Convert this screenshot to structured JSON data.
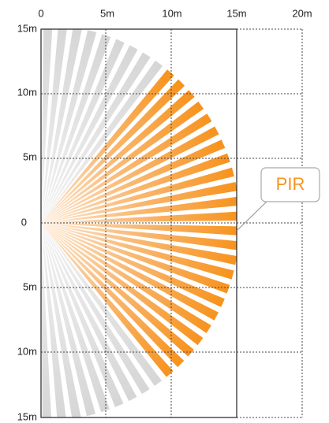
{
  "x_axis_labels": [
    "0",
    "5m",
    "10m",
    "15m",
    "20m"
  ],
  "y_axis_labels": [
    "15m",
    "10m",
    "5m",
    "0",
    "5m",
    "10m",
    "15m"
  ],
  "callout": {
    "label": "PIR"
  }
}
